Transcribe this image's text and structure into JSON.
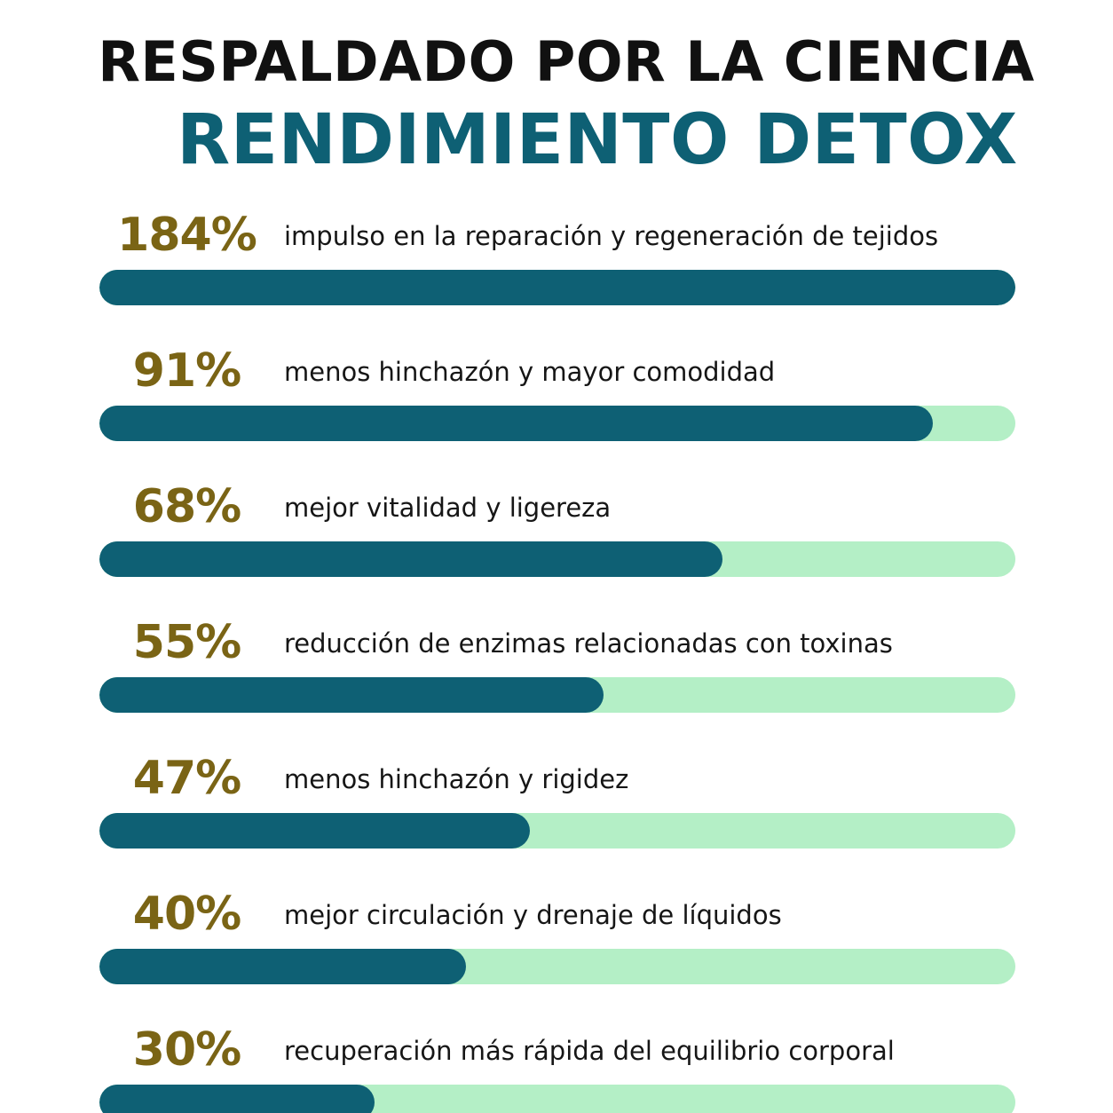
{
  "title": "RESPALDADO POR LA CIENCIA",
  "subtitle": "RENDIMIENTO DETOX",
  "colors": {
    "title": "#111111",
    "subtitle": "#0e6074",
    "percent": "#7a6415",
    "bar_fill": "#0e6074",
    "bar_track": "#b4efc6",
    "label": "#161616"
  },
  "chart_data": {
    "type": "bar",
    "orientation": "horizontal",
    "scale_max": 100,
    "categories": [
      "impulso en la reparación y regeneración de tejidos",
      "menos hinchazón y mayor comodidad",
      "mejor vitalidad y ligereza",
      "reducción de enzimas relacionadas con toxinas",
      "menos hinchazón y rigidez",
      "mejor circulación y drenaje de líquidos",
      "recuperación más rápida del equilibrio corporal"
    ],
    "values": [
      184,
      91,
      68,
      55,
      47,
      40,
      30
    ],
    "value_labels": [
      "184%",
      "91%",
      "68%",
      "55%",
      "47%",
      "40%",
      "30%"
    ],
    "title": "RESPALDADO POR LA CIENCIA",
    "subtitle": "RENDIMIENTO DETOX",
    "xlabel": "",
    "ylabel": "",
    "grid": false,
    "legend": "none"
  }
}
